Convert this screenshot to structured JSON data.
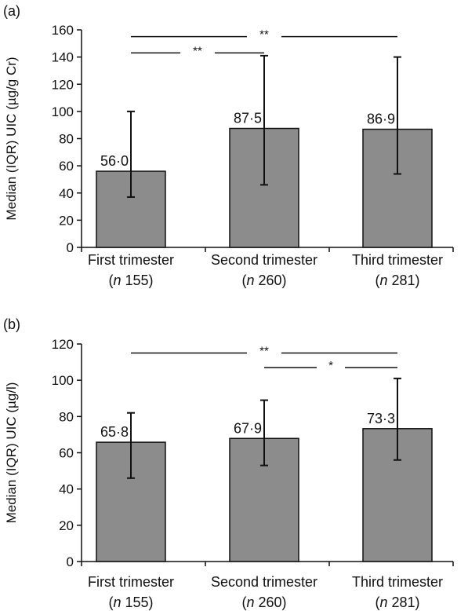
{
  "chart_data": [
    {
      "type": "bar",
      "panel_label": "(a)",
      "ylabel": "Median (IQR) UIC (µg/g Cr)",
      "ylim": [
        0,
        160
      ],
      "yticks": [
        "0",
        "20",
        "40",
        "60",
        "80",
        "100",
        "120",
        "140",
        "160"
      ],
      "categories": [
        {
          "name": "First trimester",
          "n_prefix": "(",
          "n_italic": "n",
          "n_value": " 155)"
        },
        {
          "name": "Second trimester",
          "n_prefix": "(",
          "n_italic": "n",
          "n_value": " 260)"
        },
        {
          "name": "Third trimester",
          "n_prefix": "(",
          "n_italic": "n",
          "n_value": " 281)"
        }
      ],
      "values": [
        56.0,
        87.5,
        86.9
      ],
      "value_labels": [
        "56·0",
        "87·5",
        "86·9"
      ],
      "error_low": [
        37,
        46,
        54
      ],
      "error_high": [
        100,
        141,
        140
      ],
      "bar_color": "#8c8c8c",
      "significance": [
        {
          "from": 0,
          "to": 2,
          "label": "**",
          "y": 155
        },
        {
          "from": 0,
          "to": 1,
          "label": "**",
          "y": 143
        }
      ]
    },
    {
      "type": "bar",
      "panel_label": "(b)",
      "ylabel": "Median (IQR) UIC (µg/l)",
      "ylim": [
        0,
        120
      ],
      "yticks": [
        "0",
        "20",
        "40",
        "60",
        "80",
        "100",
        "120"
      ],
      "categories": [
        {
          "name": "First trimester",
          "n_prefix": "(",
          "n_italic": "n",
          "n_value": " 155)"
        },
        {
          "name": "Second trimester",
          "n_prefix": "(",
          "n_italic": "n",
          "n_value": " 260)"
        },
        {
          "name": "Third trimester",
          "n_prefix": "(",
          "n_italic": "n",
          "n_value": " 281)"
        }
      ],
      "values": [
        65.8,
        67.9,
        73.3
      ],
      "value_labels": [
        "65·8",
        "67·9",
        "73·3"
      ],
      "error_low": [
        46,
        53,
        56
      ],
      "error_high": [
        82,
        89,
        101
      ],
      "bar_color": "#8c8c8c",
      "significance": [
        {
          "from": 0,
          "to": 2,
          "label": "**",
          "y": 115
        },
        {
          "from": 1,
          "to": 2,
          "label": "*",
          "y": 107
        }
      ]
    }
  ]
}
